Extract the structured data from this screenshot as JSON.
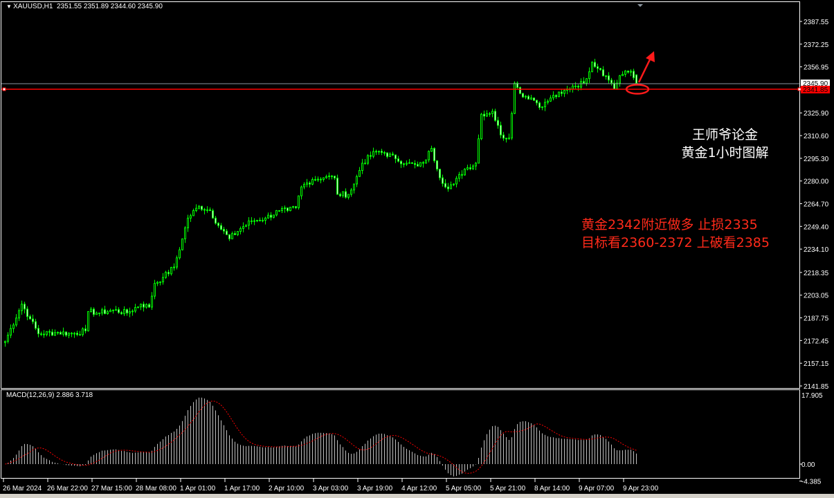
{
  "header": {
    "symbol": "XAUUSD,H1",
    "ohlc": "2351.55 2351.89 2344.60 2345.90"
  },
  "macd_header": {
    "label": "MACD(12,26,9)",
    "values": "2.886 3.718"
  },
  "annotations": {
    "title_line1": "王师爷论金",
    "title_line2": "黄金1小时图解",
    "plan_line1": "黄金2342附近做多 止损2335",
    "plan_line2": "目标看2360-2372 上破看2385"
  },
  "colors": {
    "background": "#000000",
    "candle": "#00ff00",
    "support_line": "#ff0000",
    "bid_line": "#8c96a0",
    "macd_histogram": "#c0c0c0",
    "macd_signal": "#ff0000",
    "annotation_red": "#ff2a1a"
  },
  "chart_data": [
    {
      "type": "candlestick",
      "title": "XAUUSD,H1",
      "ylim": [
        2141.85,
        2387.55
      ],
      "y_ticks": [
        "2387.55",
        "2372.25",
        "2356.95",
        "2341.85",
        "2325.90",
        "2310.60",
        "2295.30",
        "2280.00",
        "2264.70",
        "2249.40",
        "2234.10",
        "2218.35",
        "2203.05",
        "2187.75",
        "2172.45",
        "2157.15",
        "2141.85"
      ],
      "x_ticks": [
        "26 Mar 2024",
        "26 Mar 22:00",
        "27 Mar 15:00",
        "28 Mar 08:00",
        "1 Apr 01:00",
        "1 Apr 17:00",
        "2 Apr 10:00",
        "3 Apr 03:00",
        "3 Apr 19:00",
        "4 Apr 12:00",
        "5 Apr 05:00",
        "5 Apr 21:00",
        "8 Apr 14:00",
        "9 Apr 07:00",
        "9 Apr 23:00"
      ],
      "bars_per_x_tick": 16,
      "close_samples": [
        [
          0,
          2172
        ],
        [
          6,
          2197
        ],
        [
          9,
          2187
        ],
        [
          12,
          2177
        ],
        [
          19,
          2178
        ],
        [
          24,
          2177
        ],
        [
          29,
          2179
        ],
        [
          30,
          2192
        ],
        [
          34,
          2191
        ],
        [
          39,
          2193
        ],
        [
          44,
          2191
        ],
        [
          49,
          2197
        ],
        [
          52,
          2195
        ],
        [
          54,
          2211
        ],
        [
          57,
          2215
        ],
        [
          61,
          2222
        ],
        [
          64,
          2241
        ],
        [
          66,
          2255
        ],
        [
          70,
          2263
        ],
        [
          74,
          2260
        ],
        [
          77,
          2250
        ],
        [
          81,
          2241
        ],
        [
          85,
          2248
        ],
        [
          89,
          2253
        ],
        [
          94,
          2255
        ],
        [
          99,
          2260
        ],
        [
          102,
          2260
        ],
        [
          105,
          2262
        ],
        [
          107,
          2276
        ],
        [
          111,
          2281
        ],
        [
          116,
          2283
        ],
        [
          119,
          2282
        ],
        [
          120,
          2271
        ],
        [
          124,
          2271
        ],
        [
          126,
          2278
        ],
        [
          129,
          2292
        ],
        [
          134,
          2300
        ],
        [
          137,
          2299
        ],
        [
          141,
          2295
        ],
        [
          145,
          2292
        ],
        [
          149,
          2290
        ],
        [
          151,
          2292
        ],
        [
          154,
          2302
        ],
        [
          156,
          2288
        ],
        [
          159,
          2276
        ],
        [
          162,
          2278
        ],
        [
          166,
          2288
        ],
        [
          170,
          2292
        ],
        [
          172,
          2325
        ],
        [
          176,
          2327
        ],
        [
          179,
          2311
        ],
        [
          182,
          2309
        ],
        [
          184,
          2346
        ],
        [
          186,
          2339
        ],
        [
          190,
          2336
        ],
        [
          194,
          2330
        ],
        [
          197,
          2336
        ],
        [
          201,
          2339
        ],
        [
          205,
          2344
        ],
        [
          209,
          2346
        ],
        [
          212,
          2360
        ],
        [
          215,
          2355
        ],
        [
          219,
          2346
        ],
        [
          220,
          2342
        ],
        [
          222,
          2351
        ],
        [
          226,
          2354
        ],
        [
          228,
          2345.9
        ]
      ],
      "last_bar": {
        "open": 2351.55,
        "high": 2351.89,
        "low": 2344.6,
        "close": 2345.9
      },
      "bid_price": "2345.90",
      "horizontal_line": {
        "price": "2341.85"
      }
    },
    {
      "type": "bar",
      "title": "MACD(12,26,9)",
      "ylim": [
        -4.385,
        17.905
      ],
      "y_ticks": [
        "17.905",
        "0.00",
        "-4.385"
      ],
      "main_value": 2.886,
      "signal_value": 3.718
    }
  ]
}
